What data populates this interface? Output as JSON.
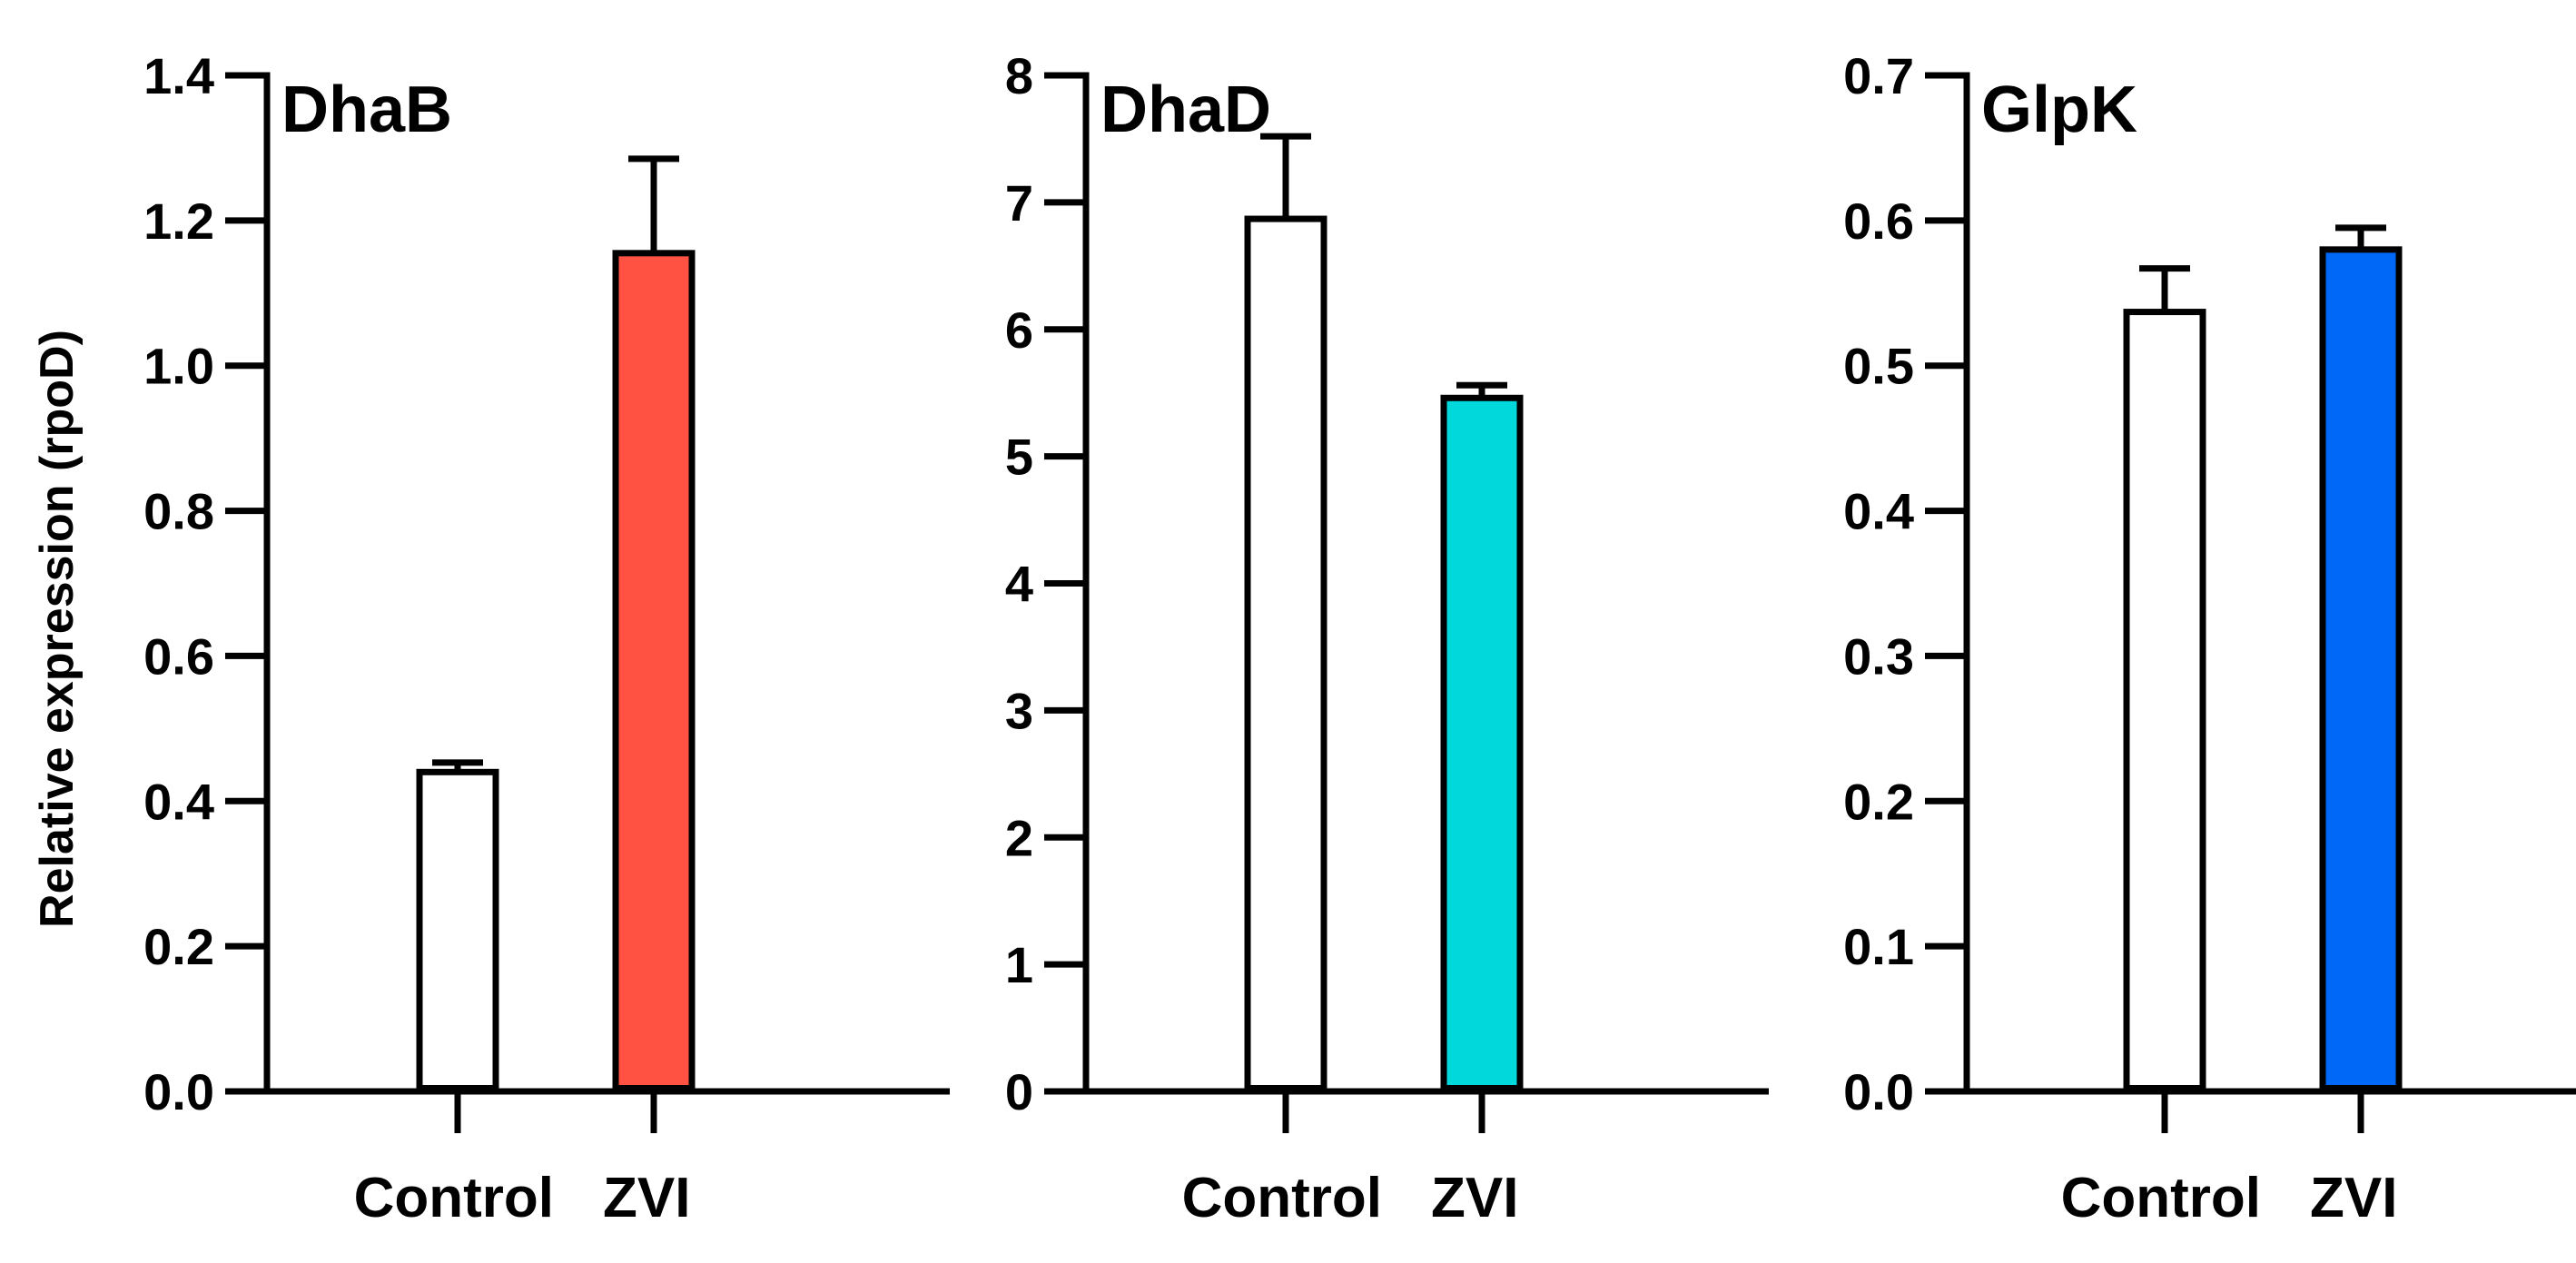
{
  "chart_data": [
    {
      "type": "bar",
      "title": "DhaB",
      "ylabel": "Relative expression (rpoD)",
      "xlabel": "",
      "categories": [
        "Control",
        "ZVI"
      ],
      "values": [
        0.44,
        1.155
      ],
      "errors": [
        0.013,
        0.13
      ],
      "colors": [
        "#ffffff",
        "#ff5242"
      ],
      "ylim": [
        0,
        1.4
      ],
      "yticks": [
        "0.0",
        "0.2",
        "0.4",
        "0.6",
        "0.8",
        "1.0",
        "1.2",
        "1.4"
      ]
    },
    {
      "type": "bar",
      "title": "DhaD",
      "ylabel": "",
      "xlabel": "",
      "categories": [
        "Control",
        "ZVI"
      ],
      "values": [
        6.87,
        5.46
      ],
      "errors": [
        0.65,
        0.1
      ],
      "colors": [
        "#ffffff",
        "#00d8dc"
      ],
      "ylim": [
        0,
        8
      ],
      "yticks": [
        "0",
        "1",
        "2",
        "3",
        "4",
        "5",
        "6",
        "7",
        "8"
      ]
    },
    {
      "type": "bar",
      "title": "GlpK",
      "ylabel": "",
      "xlabel": "",
      "categories": [
        "Control",
        "ZVI"
      ],
      "values": [
        0.537,
        0.58
      ],
      "errors": [
        0.03,
        0.015
      ],
      "colors": [
        "#ffffff",
        "#0068f6"
      ],
      "ylim": [
        0,
        0.7
      ],
      "yticks": [
        "0.0",
        "0.1",
        "0.2",
        "0.3",
        "0.4",
        "0.5",
        "0.6",
        "0.7"
      ]
    }
  ]
}
